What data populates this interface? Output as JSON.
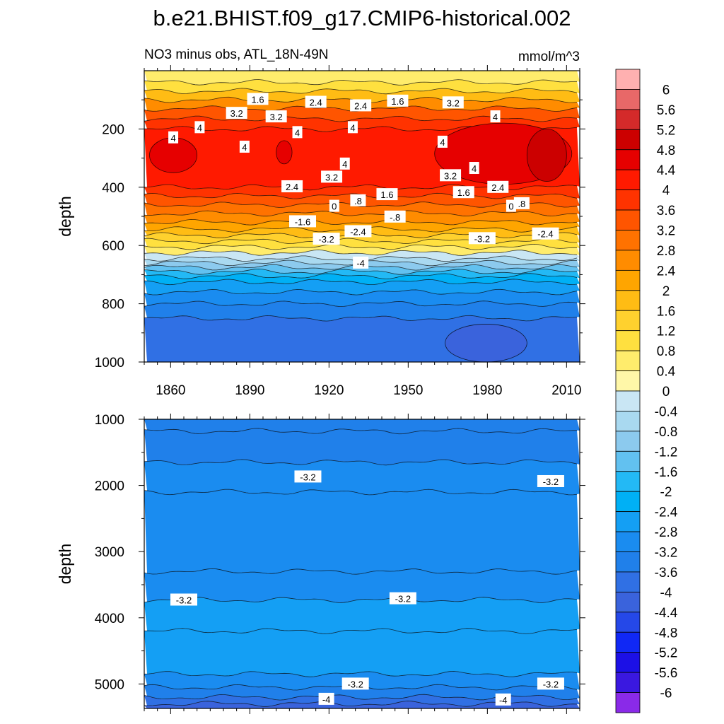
{
  "chart_data": {
    "type": "heatmap",
    "title": "b.e21.BHIST.f09_g17.CMIP6-historical.002",
    "subtitle_left": "NO3 minus obs, ATL_18N-49N",
    "subtitle_right": "mmol/m^3",
    "colorbar": {
      "levels": [
        "6",
        "5.6",
        "5.2",
        "4.8",
        "4.4",
        "4",
        "3.6",
        "3.2",
        "2.8",
        "2.4",
        "2",
        "1.6",
        "1.2",
        "0.8",
        "0.4",
        "0",
        "-0.4",
        "-0.8",
        "-1.2",
        "-1.6",
        "-2",
        "-2.4",
        "-2.8",
        "-3.2",
        "-3.6",
        "-4",
        "-4.4",
        "-4.8",
        "-5.2",
        "-5.6",
        "-6"
      ],
      "colors": [
        "#ffb0b0",
        "#e86868",
        "#d42a2a",
        "#cc0000",
        "#e60000",
        "#ff1a00",
        "#ff3300",
        "#ff5500",
        "#ff7200",
        "#ff8c00",
        "#ffa500",
        "#ffbc14",
        "#ffd12e",
        "#ffe03f",
        "#ffec6c",
        "#fff7a8",
        "#c9e6f4",
        "#a9d9f0",
        "#8ccaee",
        "#62c1f0",
        "#23b9f5",
        "#00b0f5",
        "#149ff4",
        "#1a8cf0",
        "#2080ea",
        "#3070e4",
        "#3a63dc",
        "#2548e8",
        "#1028f5",
        "#1c10e6",
        "#3a18e0",
        "#8a2ae8"
      ]
    },
    "panels": [
      {
        "name": "upper",
        "ylabel": "depth",
        "xlabel": "",
        "xlim": [
          1850,
          2015
        ],
        "ylim": [
          1000,
          0
        ],
        "xticks": [
          "1860",
          "1890",
          "1920",
          "1950",
          "1980",
          "2010"
        ],
        "xtick_values": [
          1860,
          1890,
          1920,
          1950,
          1980,
          2010
        ],
        "yticks": [
          "200",
          "400",
          "600",
          "800",
          "1000"
        ],
        "ytick_values": [
          200,
          400,
          600,
          800,
          1000
        ],
        "depth_bands": [
          {
            "top": 0,
            "bottom": 40,
            "value": 0.4
          },
          {
            "top": 40,
            "bottom": 70,
            "value": 0.8
          },
          {
            "top": 70,
            "bottom": 100,
            "value": 1.6
          },
          {
            "top": 100,
            "bottom": 130,
            "value": 2.4
          },
          {
            "top": 130,
            "bottom": 165,
            "value": 3.2
          },
          {
            "top": 165,
            "bottom": 200,
            "value": 3.6
          },
          {
            "top": 200,
            "bottom": 400,
            "value": 4.0
          },
          {
            "top": 400,
            "bottom": 430,
            "value": 3.6
          },
          {
            "top": 430,
            "bottom": 460,
            "value": 3.2
          },
          {
            "top": 460,
            "bottom": 490,
            "value": 2.8
          },
          {
            "top": 490,
            "bottom": 520,
            "value": 2.4
          },
          {
            "top": 520,
            "bottom": 545,
            "value": 2.0
          },
          {
            "top": 545,
            "bottom": 565,
            "value": 1.6
          },
          {
            "top": 565,
            "bottom": 585,
            "value": 1.2
          },
          {
            "top": 585,
            "bottom": 605,
            "value": 0.8
          },
          {
            "top": 605,
            "bottom": 625,
            "value": 0.4
          },
          {
            "top": 625,
            "bottom": 645,
            "value": -0.4
          },
          {
            "top": 645,
            "bottom": 660,
            "value": -0.8
          },
          {
            "top": 660,
            "bottom": 675,
            "value": -1.2
          },
          {
            "top": 675,
            "bottom": 690,
            "value": -1.6
          },
          {
            "top": 690,
            "bottom": 705,
            "value": -2.0
          },
          {
            "top": 705,
            "bottom": 725,
            "value": -2.4
          },
          {
            "top": 725,
            "bottom": 760,
            "value": -2.8
          },
          {
            "top": 760,
            "bottom": 800,
            "value": -3.2
          },
          {
            "top": 800,
            "bottom": 850,
            "value": -3.6
          },
          {
            "top": 850,
            "bottom": 1000,
            "value": -4.0
          }
        ],
        "patches": [
          {
            "x": [
              1852,
              1870
            ],
            "depth": [
              230,
              350
            ],
            "value": 4.4
          },
          {
            "x": [
              1900,
              1906
            ],
            "depth": [
              240,
              320
            ],
            "value": 4.4
          },
          {
            "x": [
              1960,
              2012
            ],
            "depth": [
              180,
              390
            ],
            "value": 4.4
          },
          {
            "x": [
              1995,
              2010
            ],
            "depth": [
              200,
              380
            ],
            "value": 4.8
          },
          {
            "x": [
              1964,
              1995
            ],
            "depth": [
              870,
              1000
            ],
            "value": -4.4
          }
        ],
        "contour_labels": [
          {
            "text": "1.6",
            "x": 1893,
            "y": 98
          },
          {
            "text": "2.4",
            "x": 1915,
            "y": 108
          },
          {
            "text": "2.4",
            "x": 1932,
            "y": 120
          },
          {
            "text": "1.6",
            "x": 1946,
            "y": 104
          },
          {
            "text": "3.2",
            "x": 1967,
            "y": 110
          },
          {
            "text": "3.2",
            "x": 1885,
            "y": 146
          },
          {
            "text": "3.2",
            "x": 1900,
            "y": 158
          },
          {
            "text": "4",
            "x": 1983,
            "y": 158
          },
          {
            "text": "4",
            "x": 1871,
            "y": 195
          },
          {
            "text": "4",
            "x": 1908,
            "y": 212
          },
          {
            "text": "4",
            "x": 1929,
            "y": 195
          },
          {
            "text": "4",
            "x": 1861,
            "y": 230
          },
          {
            "text": "4",
            "x": 1963,
            "y": 245
          },
          {
            "text": "4",
            "x": 1888,
            "y": 262
          },
          {
            "text": "4",
            "x": 1926,
            "y": 320
          },
          {
            "text": "4",
            "x": 1975,
            "y": 335
          },
          {
            "text": "3.2",
            "x": 1921,
            "y": 365
          },
          {
            "text": "3.2",
            "x": 1966,
            "y": 360
          },
          {
            "text": "2.4",
            "x": 1906,
            "y": 398
          },
          {
            "text": "2.4",
            "x": 1984,
            "y": 400
          },
          {
            "text": "1.6",
            "x": 1942,
            "y": 425
          },
          {
            "text": "1.6",
            "x": 1971,
            "y": 418
          },
          {
            "text": ".8",
            "x": 1931,
            "y": 446
          },
          {
            "text": ".8",
            "x": 1993,
            "y": 456
          },
          {
            "text": "0",
            "x": 1922,
            "y": 465
          },
          {
            "text": "0",
            "x": 1989,
            "y": 465
          },
          {
            "text": "-.8",
            "x": 1945,
            "y": 502
          },
          {
            "text": "-1.6",
            "x": 1910,
            "y": 518
          },
          {
            "text": "-2.4",
            "x": 1931,
            "y": 552
          },
          {
            "text": "-2.4",
            "x": 2002,
            "y": 560
          },
          {
            "text": "-3.2",
            "x": 1919,
            "y": 578
          },
          {
            "text": "-3.2",
            "x": 1978,
            "y": 576
          },
          {
            "text": "-4",
            "x": 1932,
            "y": 660
          }
        ]
      },
      {
        "name": "lower",
        "ylabel": "depth",
        "xlabel": "",
        "xlim": [
          1850,
          2015
        ],
        "ylim": [
          5370,
          1000
        ],
        "xticks": [
          "",
          "",
          "",
          "",
          "",
          ""
        ],
        "xtick_values": [
          1860,
          1890,
          1920,
          1950,
          1980,
          2010
        ],
        "yticks": [
          "1000",
          "2000",
          "3000",
          "4000",
          "5000"
        ],
        "ytick_values": [
          1000,
          2000,
          3000,
          4000,
          5000
        ],
        "depth_bands": [
          {
            "top": 1000,
            "bottom": 1180,
            "value": -3.6
          },
          {
            "top": 1180,
            "bottom": 1650,
            "value": -3.6
          },
          {
            "top": 1650,
            "bottom": 2100,
            "value": -3.2
          },
          {
            "top": 2100,
            "bottom": 3300,
            "value": -3.2
          },
          {
            "top": 3300,
            "bottom": 3730,
            "value": -3.2
          },
          {
            "top": 3730,
            "bottom": 4200,
            "value": -2.8
          },
          {
            "top": 4200,
            "bottom": 4850,
            "value": -2.8
          },
          {
            "top": 4850,
            "bottom": 5050,
            "value": -3.2
          },
          {
            "top": 5050,
            "bottom": 5200,
            "value": -3.6
          },
          {
            "top": 5200,
            "bottom": 5300,
            "value": -4.0
          },
          {
            "top": 5300,
            "bottom": 5370,
            "value": -4.4
          }
        ],
        "patches": [],
        "contour_labels": [
          {
            "text": "-3.2",
            "x": 1912,
            "y": 1870
          },
          {
            "text": "-3.2",
            "x": 2004,
            "y": 1940
          },
          {
            "text": "-3.2",
            "x": 1865,
            "y": 3730
          },
          {
            "text": "-3.2",
            "x": 1948,
            "y": 3710
          },
          {
            "text": "-3.2",
            "x": 1930,
            "y": 5000
          },
          {
            "text": "-3.2",
            "x": 2004,
            "y": 5000
          },
          {
            "text": "-4",
            "x": 1919,
            "y": 5230
          },
          {
            "text": "-4",
            "x": 1986,
            "y": 5240
          }
        ]
      }
    ]
  }
}
